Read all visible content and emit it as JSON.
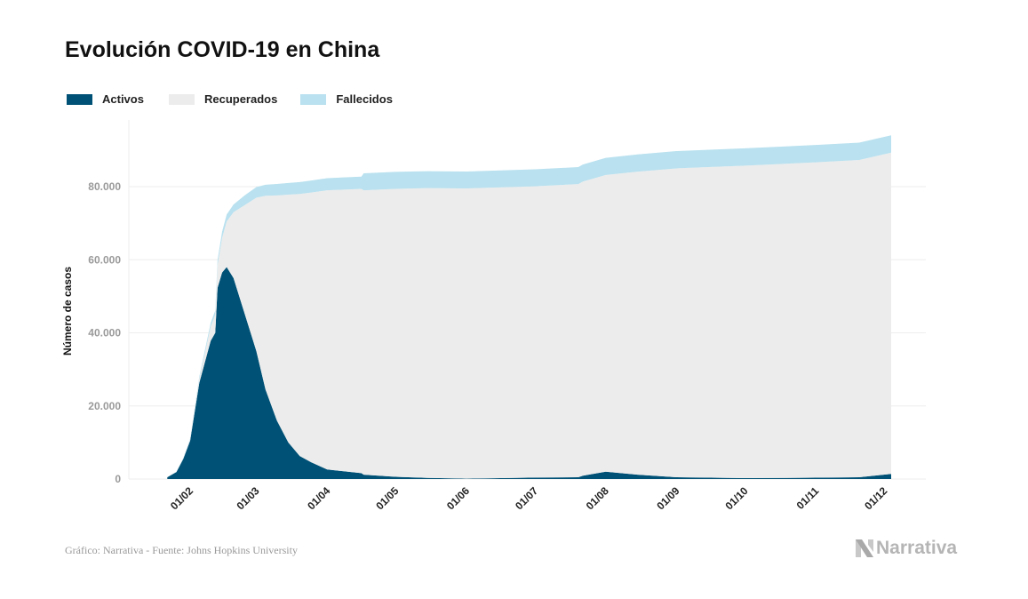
{
  "chart_data": {
    "type": "area",
    "stacked": true,
    "title": "Evolución COVID-19 en China",
    "ylabel": "Número de casos",
    "xlabel": "",
    "ylim": [
      0,
      100000
    ],
    "yticks": [
      0,
      20000,
      40000,
      60000,
      80000
    ],
    "ytick_labels": [
      "0",
      "20.000",
      "40.000",
      "60.000",
      "80.000"
    ],
    "xticks": [
      "01/02",
      "01/03",
      "01/04",
      "01/05",
      "01/06",
      "01/07",
      "01/08",
      "01/09",
      "01/10",
      "01/11",
      "01/12"
    ],
    "grid": true,
    "legend_position": "top-left",
    "colors": {
      "Activos": "#005176",
      "Recuperados": "#ececec",
      "Fallecidos": "#b9e1ef"
    },
    "dates": [
      "22/01",
      "26/01",
      "29/01",
      "01/02",
      "05/02",
      "10/02",
      "12/02",
      "13/02",
      "15/02",
      "17/02",
      "20/02",
      "25/02",
      "01/03",
      "05/03",
      "10/03",
      "15/03",
      "20/03",
      "25/03",
      "01/04",
      "16/04",
      "17/04",
      "01/05",
      "15/05",
      "01/06",
      "01/07",
      "20/07",
      "22/07",
      "01/08",
      "15/08",
      "01/09",
      "01/10",
      "01/11",
      "20/11",
      "04/12"
    ],
    "series": [
      {
        "name": "Activos",
        "values": [
          480,
          1900,
          5500,
          10500,
          26300,
          37800,
          40000,
          52300,
          56500,
          58000,
          55000,
          45000,
          35000,
          24500,
          16000,
          10000,
          6300,
          4600,
          2600,
          1600,
          1200,
          600,
          300,
          100,
          400,
          500,
          900,
          2000,
          1200,
          500,
          250,
          350,
          500,
          1400
        ]
      },
      {
        "name": "Recuperados",
        "values": [
          28,
          60,
          130,
          280,
          1100,
          3900,
          5000,
          6200,
          9500,
          12500,
          18000,
          30000,
          42000,
          53000,
          61600,
          67800,
          71700,
          73800,
          76400,
          77800,
          77800,
          78800,
          79300,
          79400,
          79700,
          80200,
          80500,
          81200,
          82900,
          84500,
          85500,
          86300,
          86800,
          87900
        ]
      },
      {
        "name": "Fallecidos",
        "values": [
          17,
          56,
          130,
          260,
          560,
          1020,
          1120,
          1370,
          1670,
          1870,
          2120,
          2660,
          2870,
          3015,
          3136,
          3200,
          3253,
          3281,
          3312,
          3342,
          4636,
          4637,
          4637,
          4638,
          4641,
          4644,
          4650,
          4672,
          4700,
          4717,
          4739,
          4746,
          4746,
          4750
        ]
      }
    ]
  },
  "legend": [
    {
      "label": "Activos",
      "color": "#005176"
    },
    {
      "label": "Recuperados",
      "color": "#ececec"
    },
    {
      "label": "Fallecidos",
      "color": "#b9e1ef"
    }
  ],
  "footer": {
    "source": "Gráfico: Narrativa - Fuente: Johns Hopkins University",
    "logo": "Narrativa"
  }
}
